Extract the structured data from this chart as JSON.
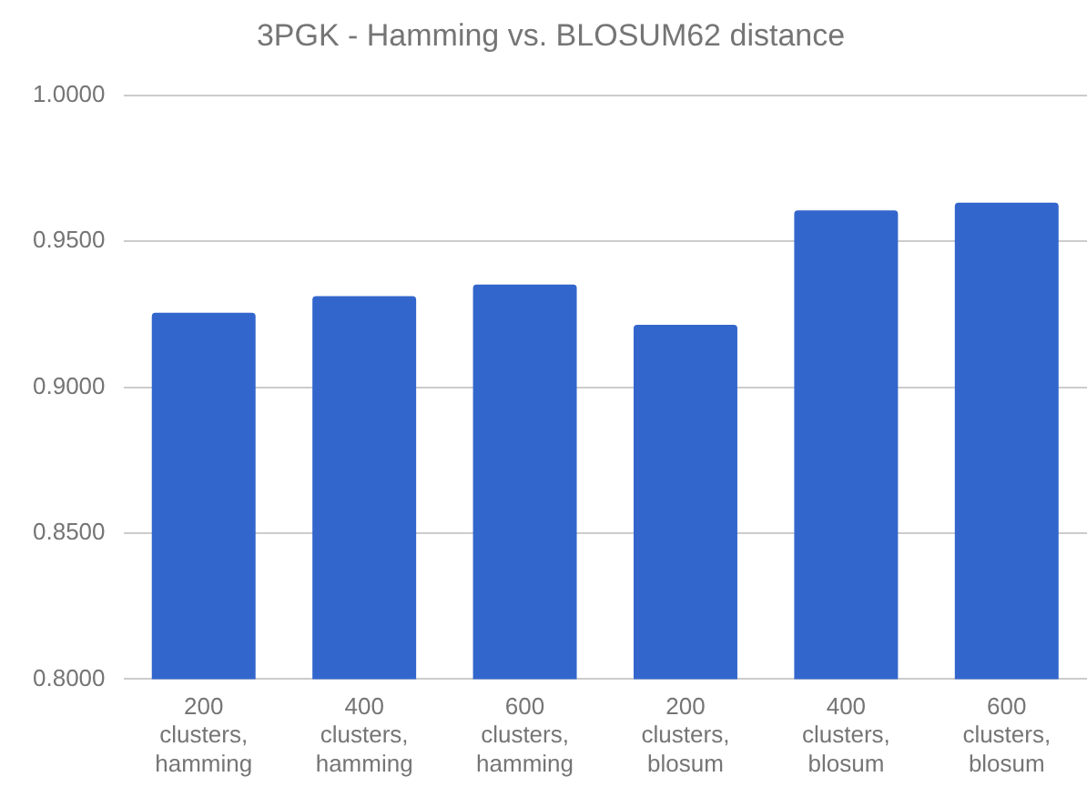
{
  "chart_data": {
    "type": "bar",
    "title": "3PGK - Hamming vs. BLOSUM62 distance",
    "categories": [
      "200 clusters, hamming",
      "400 clusters, hamming",
      "600 clusters, hamming",
      "200 clusters, blosum",
      "400 clusters, blosum",
      "600 clusters, blosum"
    ],
    "values": [
      0.9255,
      0.9312,
      0.9352,
      0.9214,
      0.9606,
      0.9632
    ],
    "color": "#3366cc",
    "ylim": [
      0.8,
      1.0
    ],
    "yticks": [
      {
        "value": 0.8,
        "label": "0.8000"
      },
      {
        "value": 0.85,
        "label": "0.8500"
      },
      {
        "value": 0.9,
        "label": "0.9000"
      },
      {
        "value": 0.95,
        "label": "0.9500"
      },
      {
        "value": 1.0,
        "label": "1.0000"
      }
    ],
    "grid": "y"
  }
}
